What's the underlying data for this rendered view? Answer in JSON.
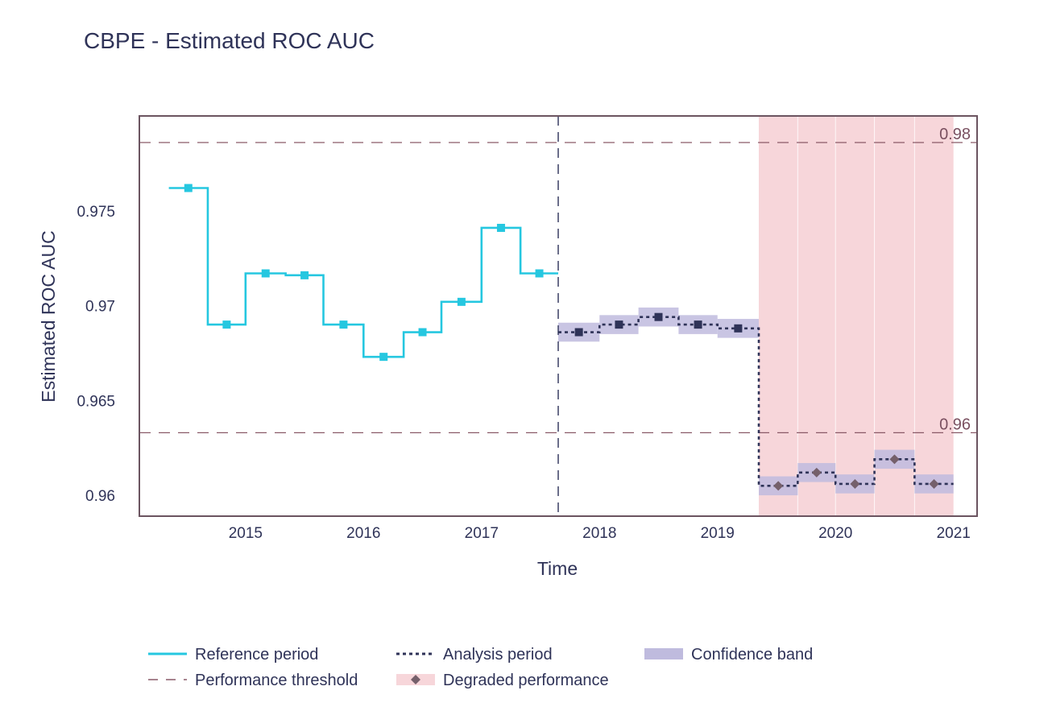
{
  "chart_data": {
    "type": "line",
    "title": "CBPE - Estimated ROC AUC",
    "xlabel": "Time",
    "ylabel": "Estimated ROC AUC",
    "x_ticks": [
      "2015",
      "2016",
      "2017",
      "2018",
      "2019",
      "2020",
      "2021"
    ],
    "y_ticks": [
      "0.96",
      "0.965",
      "0.97",
      "0.975"
    ],
    "x_range": [
      2014.1,
      2021.2
    ],
    "y_range": [
      0.9589,
      0.98
    ],
    "grid": false,
    "legend_position": "bottom",
    "colors": {
      "reference": "#25c7e0",
      "analysis": "#2f3358",
      "threshold": "#8a5a68",
      "confidence": "#bfbbde",
      "degraded_band": "#f7d6da",
      "degraded_marker": "#75606b",
      "axis": "#6b5460"
    },
    "thresholds": [
      {
        "value": 0.9786,
        "label": "0.98"
      },
      {
        "value": 0.9633,
        "label": "0.96"
      }
    ],
    "reference_end": 2017.65,
    "degraded_region": [
      2019.35,
      2021.0
    ],
    "series": [
      {
        "name": "Reference period",
        "style": "solid",
        "points": [
          {
            "start": 2014.35,
            "end": 2014.68,
            "value": 0.9762
          },
          {
            "start": 2014.68,
            "end": 2015.0,
            "value": 0.969
          },
          {
            "start": 2015.0,
            "end": 2015.34,
            "value": 0.9717
          },
          {
            "start": 2015.34,
            "end": 2015.66,
            "value": 0.9716
          },
          {
            "start": 2015.66,
            "end": 2016.0,
            "value": 0.969
          },
          {
            "start": 2016.0,
            "end": 2016.34,
            "value": 0.9673
          },
          {
            "start": 2016.34,
            "end": 2016.66,
            "value": 0.9686
          },
          {
            "start": 2016.66,
            "end": 2017.0,
            "value": 0.9702
          },
          {
            "start": 2017.0,
            "end": 2017.33,
            "value": 0.9741
          },
          {
            "start": 2017.33,
            "end": 2017.65,
            "value": 0.9717
          }
        ]
      },
      {
        "name": "Analysis period",
        "style": "dotted",
        "points": [
          {
            "start": 2017.65,
            "end": 2018.0,
            "value": 0.9686,
            "lower": 0.9681,
            "upper": 0.9691,
            "degraded": false
          },
          {
            "start": 2018.0,
            "end": 2018.33,
            "value": 0.969,
            "lower": 0.9685,
            "upper": 0.9695,
            "degraded": false
          },
          {
            "start": 2018.33,
            "end": 2018.67,
            "value": 0.9694,
            "lower": 0.9689,
            "upper": 0.9699,
            "degraded": false
          },
          {
            "start": 2018.67,
            "end": 2019.0,
            "value": 0.969,
            "lower": 0.9685,
            "upper": 0.9695,
            "degraded": false
          },
          {
            "start": 2019.0,
            "end": 2019.35,
            "value": 0.9688,
            "lower": 0.9683,
            "upper": 0.9693,
            "degraded": false
          },
          {
            "start": 2019.35,
            "end": 2019.68,
            "value": 0.9605,
            "lower": 0.96,
            "upper": 0.961,
            "degraded": true
          },
          {
            "start": 2019.68,
            "end": 2020.0,
            "value": 0.9612,
            "lower": 0.9607,
            "upper": 0.9617,
            "degraded": true
          },
          {
            "start": 2020.0,
            "end": 2020.33,
            "value": 0.9606,
            "lower": 0.9601,
            "upper": 0.9611,
            "degraded": true
          },
          {
            "start": 2020.33,
            "end": 2020.67,
            "value": 0.9619,
            "lower": 0.9614,
            "upper": 0.9624,
            "degraded": true
          },
          {
            "start": 2020.67,
            "end": 2021.0,
            "value": 0.9606,
            "lower": 0.9601,
            "upper": 0.9611,
            "degraded": true
          }
        ]
      }
    ],
    "legend": [
      {
        "key": "reference",
        "label": "Reference period"
      },
      {
        "key": "analysis",
        "label": "Analysis period"
      },
      {
        "key": "confidence",
        "label": "Confidence band"
      },
      {
        "key": "threshold",
        "label": "Performance threshold"
      },
      {
        "key": "degraded",
        "label": "Degraded performance"
      }
    ]
  }
}
